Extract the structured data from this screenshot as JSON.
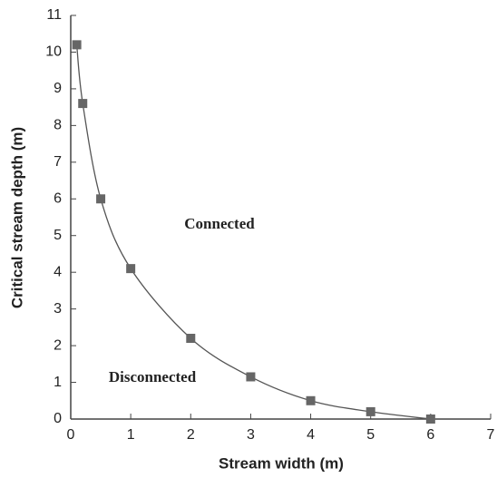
{
  "chart_data": {
    "type": "scatter",
    "x_label": "Stream width (m)",
    "y_label": "Critical stream depth (m)",
    "annotations": [
      "Connected",
      "Disconnected"
    ],
    "x": [
      0.1,
      0.2,
      0.5,
      1,
      2,
      3,
      4,
      5,
      6
    ],
    "values": [
      10.2,
      8.6,
      6.0,
      4.1,
      2.2,
      1.15,
      0.5,
      0.2,
      0
    ],
    "color": "#666666",
    "line_color": "#555555",
    "marker": "square",
    "smooth_line": true,
    "xlim": [
      0,
      7
    ],
    "xticks": [
      0,
      1,
      2,
      3,
      4,
      5,
      6,
      7
    ],
    "ylim": [
      0,
      11
    ],
    "yticks": [
      0,
      1,
      2,
      3,
      4,
      5,
      6,
      7,
      8,
      9,
      10,
      11
    ]
  }
}
